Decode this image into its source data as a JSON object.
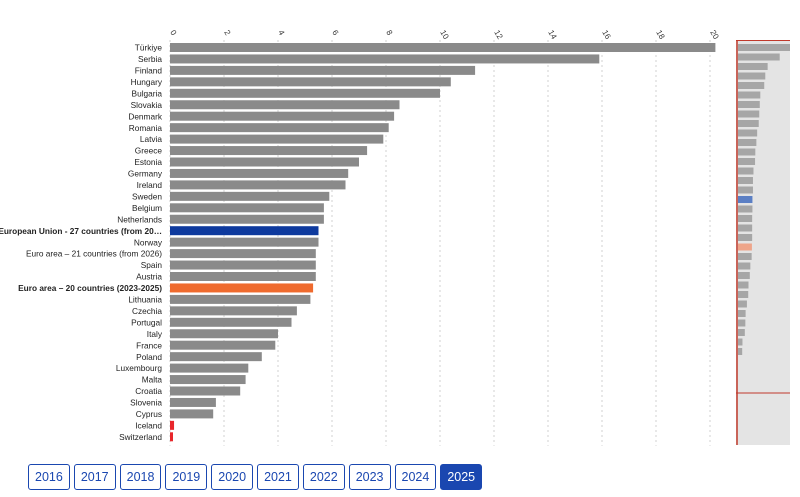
{
  "chart_data": {
    "type": "bar",
    "orientation": "horizontal",
    "x_ticks": [
      0,
      2,
      4,
      6,
      8,
      10,
      12,
      14,
      16,
      18,
      20
    ],
    "xlim": [
      0,
      20.3
    ],
    "grid": true,
    "categories": [
      "Türkiye",
      "Serbia",
      "Finland",
      "Hungary",
      "Bulgaria",
      "Slovakia",
      "Denmark",
      "Romania",
      "Latvia",
      "Greece",
      "Estonia",
      "Germany",
      "Ireland",
      "Sweden",
      "Belgium",
      "Netherlands",
      "European Union - 27 countries (from 20…",
      "Norway",
      "Euro area – 21 countries (from 2026)",
      "Spain",
      "Austria",
      "Euro area – 20 countries (2023-2025)",
      "Lithuania",
      "Czechia",
      "Portugal",
      "Italy",
      "France",
      "Poland",
      "Luxembourg",
      "Malta",
      "Croatia",
      "Slovenia",
      "Cyprus",
      "Iceland",
      "Switzerland"
    ],
    "values": [
      20.2,
      15.9,
      11.3,
      10.4,
      10.0,
      8.5,
      8.3,
      8.1,
      7.9,
      7.3,
      7.0,
      6.6,
      6.5,
      5.9,
      5.7,
      5.7,
      5.5,
      5.5,
      5.4,
      5.4,
      5.4,
      5.3,
      5.2,
      4.7,
      4.5,
      4.0,
      3.9,
      3.4,
      2.9,
      2.8,
      2.6,
      1.7,
      1.6,
      0.15,
      0.1
    ],
    "highlights": {
      "European Union - 27 countries (from 20…": "#0e3a9e",
      "Euro area – 20 countries (2023-2025)": "#ef6a2e",
      "Iceland": "#e8262b",
      "Switzerland": "#e8262b"
    },
    "bold_categories": [
      "European Union - 27 countries (from 20…",
      "Euro area – 20 countries (2023-2025)"
    ],
    "default_color": "#8a8a8a",
    "minimap_colors": {
      "eu": "#5b7fc4",
      "euro_area": "#eea58a"
    }
  },
  "years": [
    "2016",
    "2017",
    "2018",
    "2019",
    "2020",
    "2021",
    "2022",
    "2023",
    "2024",
    "2025"
  ],
  "active_year": "2025"
}
